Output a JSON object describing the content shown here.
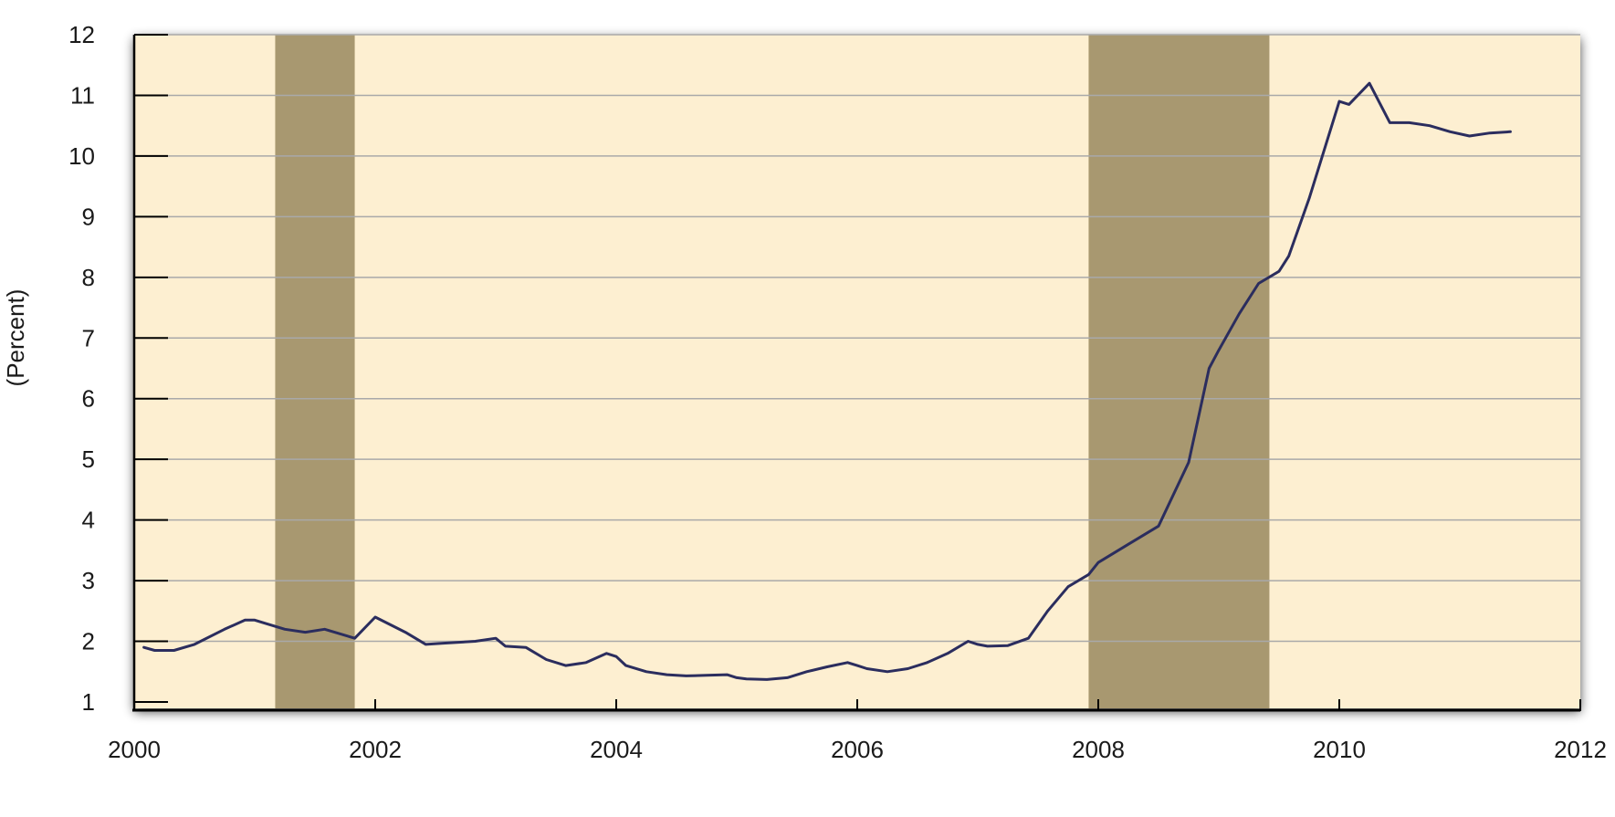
{
  "chart_data": {
    "type": "line",
    "title": "",
    "xlabel": "",
    "ylabel": "(Percent)",
    "xlim": [
      2000,
      2012
    ],
    "ylim": [
      1,
      12
    ],
    "x_ticks": [
      "2000",
      "2002",
      "2004",
      "2006",
      "2008",
      "2010",
      "2012"
    ],
    "y_ticks": [
      "1",
      "2",
      "3",
      "4",
      "5",
      "6",
      "7",
      "8",
      "9",
      "10",
      "11",
      "12"
    ],
    "grid": true,
    "shaded_periods": [
      {
        "start": 2001.17,
        "end": 2001.83
      },
      {
        "start": 2007.92,
        "end": 2009.42
      }
    ],
    "colors": {
      "plot_background": "#fdefd1",
      "shaded_period": "#a89870",
      "line": "#2b2d5e",
      "grid": "#a9a9a9"
    },
    "series": [
      {
        "x": [
          2000.08,
          2000.17,
          2000.33,
          2000.5,
          2000.75,
          2000.92,
          2001.0,
          2001.08,
          2001.25,
          2001.42,
          2001.58,
          2001.83,
          2002.0,
          2002.25,
          2002.42,
          2002.58,
          2002.83,
          2003.0,
          2003.08,
          2003.25,
          2003.42,
          2003.58,
          2003.75,
          2003.92,
          2004.0,
          2004.08,
          2004.25,
          2004.42,
          2004.58,
          2004.75,
          2004.92,
          2005.0,
          2005.08,
          2005.25,
          2005.42,
          2005.58,
          2005.75,
          2005.92,
          2006.0,
          2006.08,
          2006.25,
          2006.42,
          2006.58,
          2006.75,
          2006.92,
          2007.0,
          2007.08,
          2007.25,
          2007.42,
          2007.58,
          2007.75,
          2007.92,
          2008.0,
          2008.25,
          2008.5,
          2008.75,
          2008.92,
          2009.0,
          2009.17,
          2009.33,
          2009.5,
          2009.58,
          2009.75,
          2010.0,
          2010.08,
          2010.25,
          2010.42,
          2010.58,
          2010.75,
          2010.92,
          2011.08,
          2011.25,
          2011.42
        ],
        "values": [
          1.9,
          1.85,
          1.85,
          1.95,
          2.2,
          2.35,
          2.35,
          2.3,
          2.2,
          2.15,
          2.2,
          2.05,
          2.4,
          2.15,
          1.95,
          1.97,
          2.0,
          2.05,
          1.92,
          1.9,
          1.7,
          1.6,
          1.65,
          1.8,
          1.75,
          1.6,
          1.5,
          1.45,
          1.43,
          1.44,
          1.45,
          1.4,
          1.38,
          1.37,
          1.4,
          1.5,
          1.58,
          1.65,
          1.6,
          1.55,
          1.5,
          1.55,
          1.65,
          1.8,
          2.0,
          1.95,
          1.92,
          1.93,
          2.05,
          2.5,
          2.9,
          3.1,
          3.3,
          3.6,
          3.9,
          4.95,
          6.5,
          6.8,
          7.4,
          7.9,
          8.1,
          8.35,
          9.3,
          10.9,
          10.85,
          11.2,
          10.55,
          10.55,
          10.5,
          10.4,
          10.33,
          10.38,
          10.4
        ]
      }
    ]
  }
}
